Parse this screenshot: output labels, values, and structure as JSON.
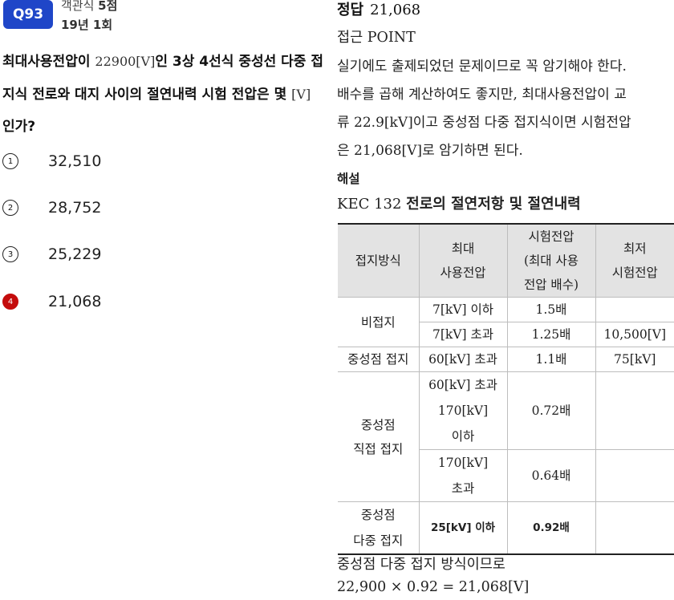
{
  "question": {
    "badge": "Q93",
    "type_prefix": "객관식 ",
    "points": "5점",
    "session": "19년 1회",
    "stem_line1_a": "최대사용전압이 ",
    "stem_line1_b": "22900[V]",
    "stem_line1_c": "인 3상 4선식 중성선 다중 접",
    "stem_line2_a": "지식 전로와 대지 사이의 절연내력 시험 전압은 몇 ",
    "stem_line2_b": "[V]",
    "stem_line3": "인가?",
    "choices": [
      {
        "num": "1",
        "value": "32,510"
      },
      {
        "num": "2",
        "value": "28,752"
      },
      {
        "num": "3",
        "value": "25,229"
      },
      {
        "num": "4",
        "value": "21,068"
      }
    ]
  },
  "answer": {
    "label": "정답",
    "value": "21,068"
  },
  "approach": {
    "title": "접근 POINT",
    "lines": [
      "실기에도 출제되었던 문제이므로 꼭 암기해야 한다.",
      "배수를 곱해 계산하여도 좋지만, 최대사용전압이 교",
      "류 22.9[kV]이고 중성점 다중 접지식이면 시험전압",
      "은 21,068[V]로 암기하면 된다."
    ]
  },
  "solution": {
    "heading": "해설",
    "kec_code": "KEC 132",
    "kec_title": "전로의 절연저항 및 절연내력",
    "table": {
      "headers": {
        "h1": "접지방식",
        "h2_l1": "최대",
        "h2_l2": "사용전압",
        "h3_l1": "시험전압",
        "h3_l2": "(최대 사용",
        "h3_l3": "전압 배수)",
        "h4_l1": "최저",
        "h4_l2": "시험전압"
      },
      "r1_method": "비접지",
      "r1a_volt": "7[kV] 이하",
      "r1a_mult": "1.5배",
      "r1a_min": "",
      "r1b_volt": "7[kV] 초과",
      "r1b_mult": "1.25배",
      "r1b_min": "10,500[V]",
      "r2_method": "중성점 접지",
      "r2_volt": "60[kV] 초과",
      "r2_mult": "1.1배",
      "r2_min": "75[kV]",
      "r3_method_l1": "중성점",
      "r3_method_l2": "직접 접지",
      "r3a_volt_l1": "60[kV] 초과",
      "r3a_volt_l2": "170[kV]",
      "r3a_volt_l3": "이하",
      "r3a_mult": "0.72배",
      "r3b_volt_l1": "170[kV]",
      "r3b_volt_l2": "초과",
      "r3b_mult": "0.64배",
      "r4_method_l1": "중성점",
      "r4_method_l2": "다중 접지",
      "r4_volt": "25[kV] 이하",
      "r4_mult": "0.92배"
    },
    "conclusion": "중성점 다중 접지 방식이므로",
    "calculation": "22,900 × 0.92 = 21,068[V]"
  },
  "colors": {
    "badge": "#1f46c8",
    "correct_choice": "#c40c0c",
    "table_header_bg": "#e3e3e3"
  }
}
